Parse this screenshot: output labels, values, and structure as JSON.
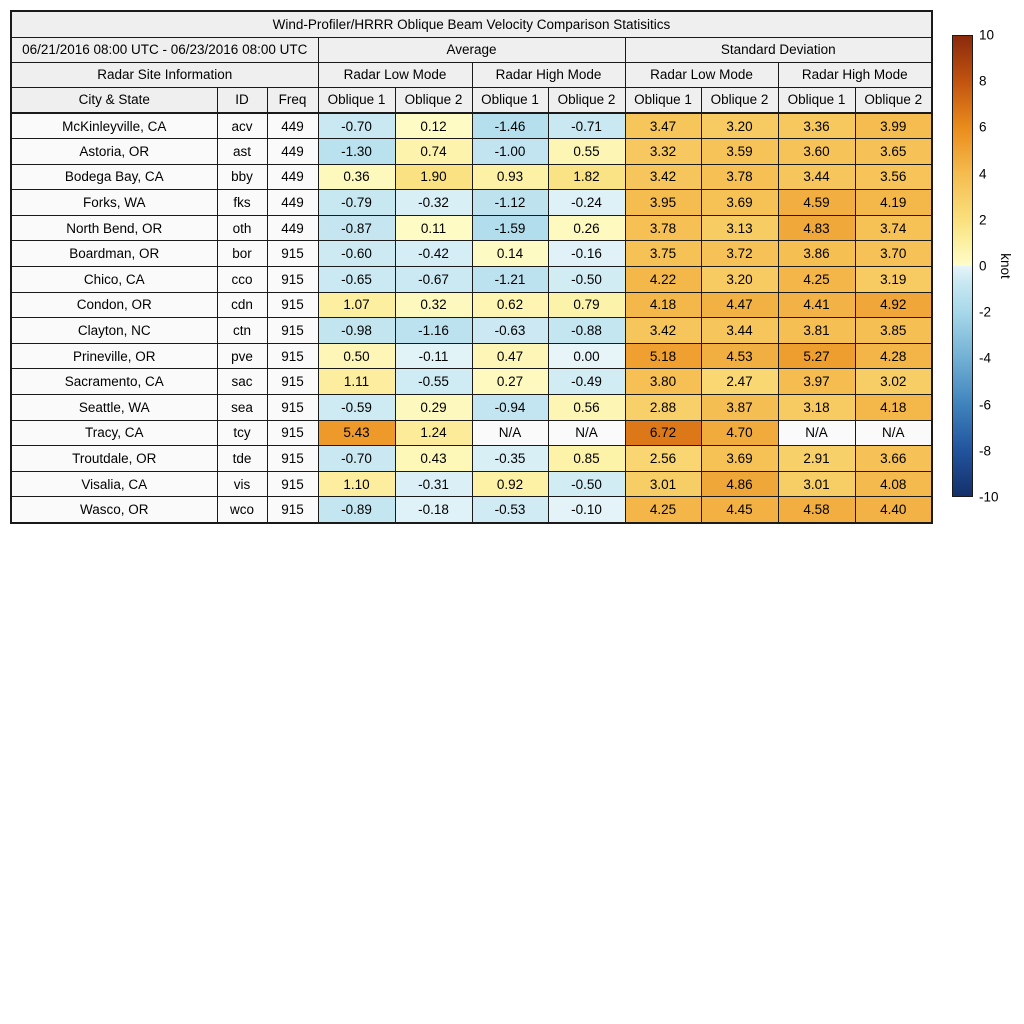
{
  "chart_data": {
    "type": "table",
    "title": "Wind-Profiler/HRRR Oblique Beam Velocity Comparison Statisitics",
    "date_range": "06/21/2016 08:00 UTC - 06/23/2016 08:00 UTC",
    "headers": {
      "average": "Average",
      "standard_deviation": "Standard Deviation",
      "site_info": "Radar Site Information",
      "low_mode": "Radar Low Mode",
      "high_mode": "Radar High Mode",
      "city": "City & State",
      "id": "ID",
      "freq": "Freq",
      "oblique1": "Oblique 1",
      "oblique2": "Oblique 2"
    },
    "value_columns": [
      "avg-low-oblique1",
      "avg-low-oblique2",
      "avg-high-oblique1",
      "avg-high-oblique2",
      "std-low-oblique1",
      "std-low-oblique2",
      "std-high-oblique1",
      "std-high-oblique2"
    ],
    "rows": [
      {
        "city": "McKinleyville, CA",
        "id": "acv",
        "freq": "449",
        "values": [
          "-0.70",
          "0.12",
          "-1.46",
          "-0.71",
          "3.47",
          "3.20",
          "3.36",
          "3.99"
        ]
      },
      {
        "city": "Astoria, OR",
        "id": "ast",
        "freq": "449",
        "values": [
          "-1.30",
          "0.74",
          "-1.00",
          "0.55",
          "3.32",
          "3.59",
          "3.60",
          "3.65"
        ]
      },
      {
        "city": "Bodega Bay, CA",
        "id": "bby",
        "freq": "449",
        "values": [
          "0.36",
          "1.90",
          "0.93",
          "1.82",
          "3.42",
          "3.78",
          "3.44",
          "3.56"
        ]
      },
      {
        "city": "Forks, WA",
        "id": "fks",
        "freq": "449",
        "values": [
          "-0.79",
          "-0.32",
          "-1.12",
          "-0.24",
          "3.95",
          "3.69",
          "4.59",
          "4.19"
        ]
      },
      {
        "city": "North Bend, OR",
        "id": "oth",
        "freq": "449",
        "values": [
          "-0.87",
          "0.11",
          "-1.59",
          "0.26",
          "3.78",
          "3.13",
          "4.83",
          "3.74"
        ]
      },
      {
        "city": "Boardman, OR",
        "id": "bor",
        "freq": "915",
        "values": [
          "-0.60",
          "-0.42",
          "0.14",
          "-0.16",
          "3.75",
          "3.72",
          "3.86",
          "3.70"
        ]
      },
      {
        "city": "Chico, CA",
        "id": "cco",
        "freq": "915",
        "values": [
          "-0.65",
          "-0.67",
          "-1.21",
          "-0.50",
          "4.22",
          "3.20",
          "4.25",
          "3.19"
        ]
      },
      {
        "city": "Condon, OR",
        "id": "cdn",
        "freq": "915",
        "values": [
          "1.07",
          "0.32",
          "0.62",
          "0.79",
          "4.18",
          "4.47",
          "4.41",
          "4.92"
        ]
      },
      {
        "city": "Clayton, NC",
        "id": "ctn",
        "freq": "915",
        "values": [
          "-0.98",
          "-1.16",
          "-0.63",
          "-0.88",
          "3.42",
          "3.44",
          "3.81",
          "3.85"
        ]
      },
      {
        "city": "Prineville, OR",
        "id": "pve",
        "freq": "915",
        "values": [
          "0.50",
          "-0.11",
          "0.47",
          "0.00",
          "5.18",
          "4.53",
          "5.27",
          "4.28"
        ]
      },
      {
        "city": "Sacramento, CA",
        "id": "sac",
        "freq": "915",
        "values": [
          "1.11",
          "-0.55",
          "0.27",
          "-0.49",
          "3.80",
          "2.47",
          "3.97",
          "3.02"
        ]
      },
      {
        "city": "Seattle, WA",
        "id": "sea",
        "freq": "915",
        "values": [
          "-0.59",
          "0.29",
          "-0.94",
          "0.56",
          "2.88",
          "3.87",
          "3.18",
          "4.18"
        ]
      },
      {
        "city": "Tracy, CA",
        "id": "tcy",
        "freq": "915",
        "values": [
          "5.43",
          "1.24",
          "N/A",
          "N/A",
          "6.72",
          "4.70",
          "N/A",
          "N/A"
        ]
      },
      {
        "city": "Troutdale, OR",
        "id": "tde",
        "freq": "915",
        "values": [
          "-0.70",
          "0.43",
          "-0.35",
          "0.85",
          "2.56",
          "3.69",
          "2.91",
          "3.66"
        ]
      },
      {
        "city": "Visalia, CA",
        "id": "vis",
        "freq": "915",
        "values": [
          "1.10",
          "-0.31",
          "0.92",
          "-0.50",
          "3.01",
          "4.86",
          "3.01",
          "4.08"
        ]
      },
      {
        "city": "Wasco, OR",
        "id": "wco",
        "freq": "915",
        "values": [
          "-0.89",
          "-0.18",
          "-0.53",
          "-0.10",
          "4.25",
          "4.45",
          "4.58",
          "4.40"
        ]
      }
    ],
    "colorbar": {
      "label": "knot",
      "min": -10,
      "max": 10,
      "ticks": [
        "10",
        "8",
        "6",
        "4",
        "2",
        "0",
        "-2",
        "-4",
        "-6",
        "-8",
        "-10"
      ],
      "stops": [
        [
          -10,
          "#14306A"
        ],
        [
          -8,
          "#22549E"
        ],
        [
          -6,
          "#3F84BD"
        ],
        [
          -4,
          "#72B0D4"
        ],
        [
          -2,
          "#A7D8EA"
        ],
        [
          -0.7,
          "#C9E8F2"
        ],
        [
          0,
          "#E7F5F9"
        ],
        [
          0.01,
          "#FEFCC9"
        ],
        [
          1,
          "#FCF0A2"
        ],
        [
          2,
          "#FAE07E"
        ],
        [
          4,
          "#F5BC4F"
        ],
        [
          6,
          "#EA8C1C"
        ],
        [
          8,
          "#C25410"
        ],
        [
          10,
          "#8B2A0C"
        ]
      ],
      "na_color": "#fafafa"
    }
  }
}
